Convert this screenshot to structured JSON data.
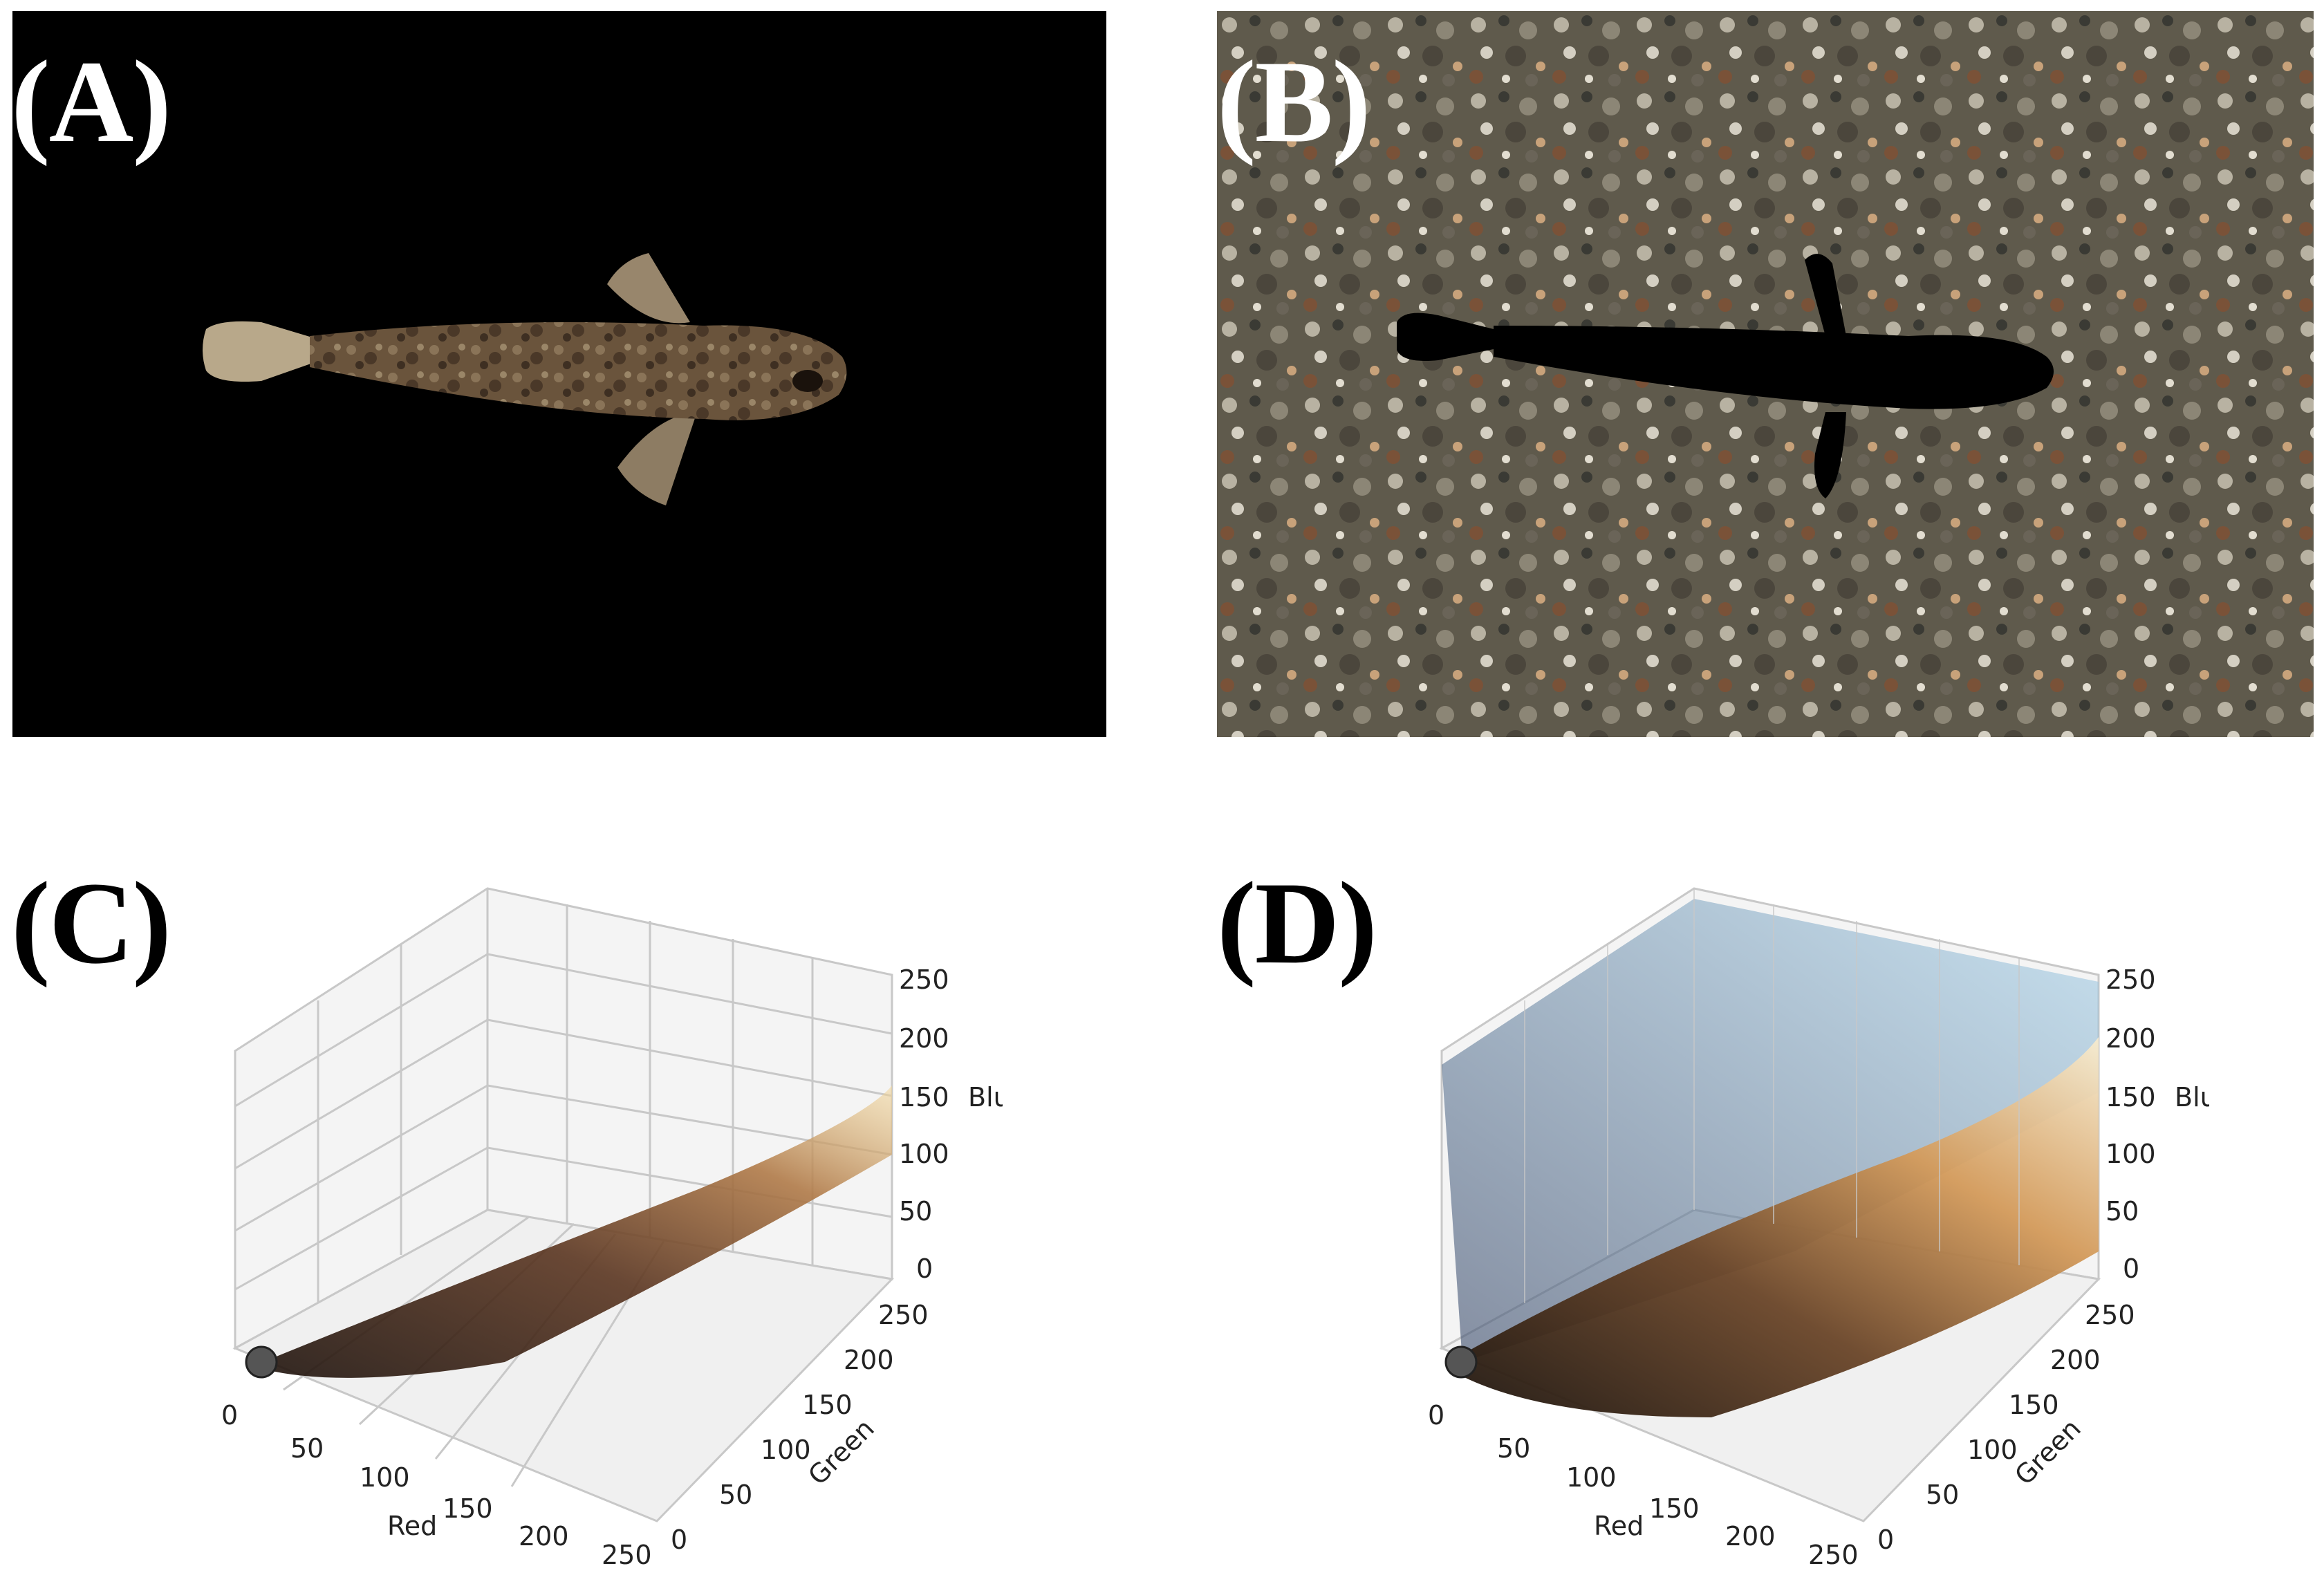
{
  "panels": {
    "a": {
      "label": "(A)"
    },
    "b": {
      "label": "(B)"
    },
    "c": {
      "label": "(C)"
    },
    "d": {
      "label": "(D)"
    }
  },
  "plot_axes": {
    "red_label": "Red",
    "green_label": "Green",
    "blue_label": "Blue",
    "ticks": [
      "0",
      "50",
      "100",
      "150",
      "200",
      "250"
    ]
  },
  "colors": {
    "photo_background_a": "#000000",
    "fish_body": "#5e4a35",
    "fish_silhouette": "#000000",
    "sediment": "#6e6757",
    "cloud_dark": "#2a1a12",
    "cloud_mid": "#8a5a34",
    "cloud_light": "#f2c98a",
    "cloud_blue": "#7fb6d9"
  }
}
